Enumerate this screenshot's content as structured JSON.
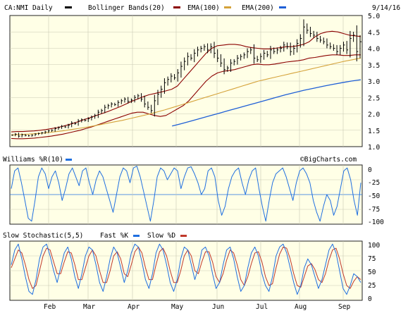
{
  "header": {
    "symbol": "CA:NMI Daily",
    "bollinger": "Bollinger Bands(20)",
    "ema100": "EMA(100)",
    "ema200": "EMA(200)",
    "date": "9/14/16"
  },
  "colors": {
    "background": "#ffffe6",
    "price": "#000000",
    "bollinger": "#8b0000",
    "ema100": "#d4a23a",
    "ema200": "#1f5fd6",
    "williams": "#1f6fe0",
    "fastK": "#1f6fe0",
    "slowD": "#c0392b"
  },
  "williams": {
    "label": "Williams %R(10)",
    "source": "©BigCharts.com",
    "ticks": [
      "0",
      "-25",
      "-50",
      "-75",
      "-100"
    ]
  },
  "stochastic": {
    "label": "Slow Stochastic(5,5)",
    "fast": "Fast %K",
    "slow": "Slow %D",
    "ticks": [
      "100",
      "75",
      "50",
      "25",
      "0"
    ]
  },
  "xaxis": {
    "months": [
      "Feb",
      "Mar",
      "Apr",
      "May",
      "Jun",
      "Jul",
      "Aug",
      "Sep"
    ]
  },
  "chart_data": {
    "type": "line",
    "title": "CA:NMI Daily",
    "ylim": [
      1.0,
      5.0
    ],
    "yticks": [
      "5.0",
      "4.5",
      "4.0",
      "3.5",
      "3.0",
      "2.5",
      "2.0",
      "1.5",
      "1.0"
    ],
    "x_months": [
      "Feb",
      "Mar",
      "Apr",
      "May",
      "Jun",
      "Jul",
      "Aug",
      "Sep"
    ],
    "price_close": [
      1.35,
      1.38,
      1.32,
      1.36,
      1.34,
      1.33,
      1.35,
      1.38,
      1.4,
      1.42,
      1.45,
      1.48,
      1.5,
      1.55,
      1.58,
      1.62,
      1.6,
      1.65,
      1.72,
      1.7,
      1.78,
      1.82,
      1.8,
      1.85,
      1.9,
      1.95,
      2.05,
      2.1,
      2.2,
      2.25,
      2.3,
      2.28,
      2.35,
      2.4,
      2.45,
      2.38,
      2.42,
      2.5,
      2.55,
      2.45,
      2.3,
      2.2,
      2.1,
      2.4,
      2.6,
      2.75,
      2.95,
      3.05,
      3.15,
      3.1,
      3.25,
      3.45,
      3.6,
      3.75,
      3.7,
      3.85,
      3.95,
      4.0,
      4.05,
      3.95,
      4.05,
      3.85,
      3.7,
      3.55,
      3.35,
      3.4,
      3.55,
      3.6,
      3.7,
      3.75,
      3.8,
      3.9,
      3.95,
      3.7,
      3.65,
      3.75,
      3.85,
      3.8,
      3.95,
      3.9,
      3.95,
      4.0,
      4.1,
      4.05,
      3.9,
      4.0,
      4.15,
      4.3,
      4.65,
      4.55,
      4.45,
      4.4,
      4.3,
      4.25,
      4.2,
      4.1,
      4.05,
      4.0,
      3.9,
      4.0,
      4.1,
      3.95,
      4.3,
      4.4,
      3.9,
      4.2
    ],
    "bb_upper": [
      1.45,
      1.46,
      1.46,
      1.47,
      1.48,
      1.5,
      1.52,
      1.55,
      1.58,
      1.62,
      1.67,
      1.72,
      1.78,
      1.84,
      1.9,
      1.96,
      2.02,
      2.08,
      2.15,
      2.22,
      2.3,
      2.38,
      2.45,
      2.52,
      2.58,
      2.62,
      2.66,
      2.7,
      2.75,
      2.85,
      3.05,
      3.25,
      3.45,
      3.65,
      3.85,
      4.0,
      4.08,
      4.1,
      4.12,
      4.12,
      4.1,
      4.05,
      4.02,
      4.0,
      3.98,
      3.98,
      4.0,
      4.02,
      4.05,
      4.05,
      4.08,
      4.12,
      4.2,
      4.35,
      4.45,
      4.5,
      4.52,
      4.5,
      4.45,
      4.4,
      4.38,
      4.36
    ],
    "bb_lower": [
      1.25,
      1.24,
      1.24,
      1.25,
      1.26,
      1.28,
      1.3,
      1.32,
      1.35,
      1.38,
      1.42,
      1.46,
      1.5,
      1.55,
      1.6,
      1.66,
      1.72,
      1.78,
      1.84,
      1.9,
      1.96,
      2.02,
      2.05,
      2.05,
      2.0,
      1.95,
      1.92,
      1.95,
      2.05,
      2.15,
      2.25,
      2.4,
      2.6,
      2.8,
      3.0,
      3.15,
      3.25,
      3.3,
      3.32,
      3.35,
      3.4,
      3.45,
      3.5,
      3.52,
      3.5,
      3.5,
      3.52,
      3.55,
      3.58,
      3.6,
      3.62,
      3.65,
      3.7,
      3.72,
      3.75,
      3.78,
      3.8,
      3.8,
      3.78,
      3.78,
      3.8,
      3.8
    ],
    "ema100": [
      1.36,
      1.37,
      1.38,
      1.4,
      1.42,
      1.45,
      1.48,
      1.52,
      1.56,
      1.6,
      1.65,
      1.7,
      1.75,
      1.8,
      1.86,
      1.92,
      1.98,
      2.05,
      2.12,
      2.2,
      2.28,
      2.36,
      2.44,
      2.52,
      2.6,
      2.68,
      2.76,
      2.84,
      2.92,
      3.0,
      3.06,
      3.12,
      3.18,
      3.24,
      3.3,
      3.36,
      3.42,
      3.48,
      3.54,
      3.6,
      3.65,
      3.7
    ],
    "ema200": [
      1.63,
      1.7,
      1.78,
      1.86,
      1.94,
      2.02,
      2.1,
      2.18,
      2.26,
      2.34,
      2.42,
      2.5,
      2.58,
      2.65,
      2.72,
      2.78,
      2.84,
      2.9,
      2.95,
      3.0,
      3.04
    ],
    "williams_r": [
      -40,
      -10,
      -5,
      -30,
      -60,
      -90,
      -95,
      -60,
      -20,
      -5,
      -15,
      -40,
      -20,
      -10,
      -30,
      -60,
      -40,
      -15,
      -5,
      -20,
      -35,
      -10,
      -5,
      -30,
      -50,
      -25,
      -10,
      -20,
      -40,
      -60,
      -80,
      -50,
      -20,
      -5,
      -10,
      -30,
      -5,
      -2,
      -20,
      -45,
      -70,
      -95,
      -60,
      -20,
      -5,
      -10,
      -25,
      -15,
      -5,
      -10,
      -40,
      -20,
      -5,
      -3,
      -15,
      -30,
      -50,
      -40,
      -10,
      -5,
      -20,
      -60,
      -85,
      -70,
      -40,
      -20,
      -10,
      -5,
      -30,
      -50,
      -25,
      -10,
      -5,
      -40,
      -70,
      -95,
      -60,
      -30,
      -15,
      -10,
      -5,
      -20,
      -40,
      -60,
      -30,
      -10,
      -5,
      -15,
      -30,
      -60,
      -80,
      -95,
      -70,
      -50,
      -60,
      -85,
      -70,
      -40,
      -10,
      -5,
      -25,
      -60,
      -85,
      -30
    ],
    "stoch_fast_k": [
      60,
      85,
      95,
      70,
      40,
      15,
      10,
      35,
      70,
      90,
      95,
      75,
      50,
      30,
      55,
      80,
      90,
      70,
      40,
      20,
      45,
      75,
      90,
      85,
      60,
      30,
      15,
      40,
      70,
      90,
      80,
      55,
      30,
      50,
      80,
      95,
      90,
      65,
      35,
      20,
      45,
      80,
      95,
      85,
      60,
      30,
      15,
      35,
      70,
      90,
      85,
      60,
      35,
      55,
      85,
      90,
      75,
      45,
      20,
      30,
      60,
      85,
      90,
      70,
      40,
      15,
      25,
      55,
      80,
      90,
      75,
      45,
      25,
      15,
      40,
      75,
      90,
      95,
      80,
      55,
      30,
      10,
      25,
      55,
      70,
      60,
      40,
      20,
      35,
      60,
      85,
      95,
      80,
      50,
      20,
      10,
      25,
      45,
      40,
      30
    ],
    "stoch_slow_d": [
      55,
      70,
      85,
      80,
      60,
      35,
      20,
      25,
      50,
      75,
      88,
      85,
      65,
      45,
      45,
      65,
      82,
      80,
      60,
      35,
      35,
      55,
      75,
      85,
      75,
      50,
      30,
      30,
      50,
      75,
      82,
      70,
      45,
      40,
      60,
      82,
      90,
      80,
      55,
      35,
      35,
      60,
      82,
      88,
      75,
      50,
      30,
      30,
      50,
      75,
      85,
      75,
      50,
      45,
      65,
      82,
      82,
      65,
      40,
      30,
      45,
      68,
      85,
      80,
      60,
      35,
      25,
      40,
      62,
      80,
      82,
      65,
      40,
      25,
      28,
      55,
      78,
      90,
      88,
      70,
      45,
      25,
      22,
      40,
      58,
      62,
      52,
      35,
      30,
      45,
      68,
      85,
      88,
      70,
      45,
      25,
      20,
      32,
      40,
      35
    ]
  }
}
